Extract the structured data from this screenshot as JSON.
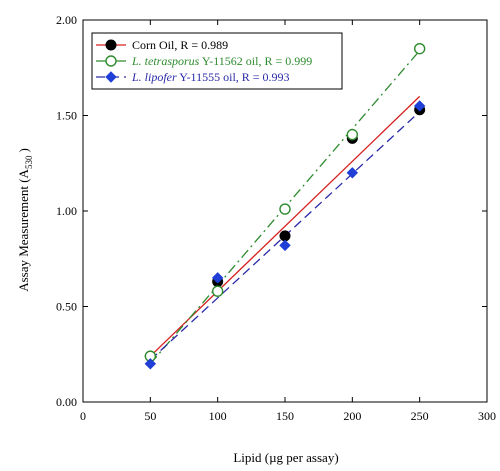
{
  "chart_data": {
    "type": "scatter",
    "title": "",
    "xlabel": "Lipid  (µg per assay)",
    "ylabel_main": "Assay Measurement (A",
    "ylabel_sub": "530",
    "ylabel_close": ")",
    "xlim": [
      0,
      300
    ],
    "ylim": [
      0,
      2.0
    ],
    "x_ticks": [
      0,
      50,
      100,
      150,
      200,
      250,
      300
    ],
    "x_tick_labels": [
      "0",
      "50",
      "100",
      "150",
      "200",
      "250",
      "300"
    ],
    "y_ticks": [
      0,
      0.5,
      1.0,
      1.5,
      2.0
    ],
    "y_tick_labels": [
      "0.00",
      "0.50",
      "1.00",
      "1.50",
      "2.00"
    ],
    "grid": false,
    "legend_position": "top-left",
    "series": [
      {
        "key": "corn",
        "name_italic": "",
        "name_rest": "Corn Oil, R = 0.989",
        "color": "#d62020",
        "marker": "filled-circle",
        "marker_color": "#000000",
        "line_style": "solid",
        "x": [
          50,
          100,
          150,
          200,
          250
        ],
        "y": [
          0.24,
          0.63,
          0.87,
          1.38,
          1.53
        ],
        "fit": {
          "x": [
            50,
            250
          ],
          "y": [
            0.24,
            1.6
          ]
        }
      },
      {
        "key": "tetrasporus",
        "name_italic": "L. tetrasporus",
        "name_rest": " Y-11562 oil, R = 0.999",
        "color": "#2e8b2e",
        "marker": "open-circle",
        "marker_color": "#2e8b2e",
        "line_style": "dash-dot",
        "x": [
          50,
          100,
          150,
          200,
          250
        ],
        "y": [
          0.24,
          0.58,
          1.01,
          1.4,
          1.85
        ],
        "fit": {
          "x": [
            50,
            250
          ],
          "y": [
            0.2,
            1.84
          ]
        }
      },
      {
        "key": "lipofer",
        "name_italic": "L. lipofer",
        "name_rest": " Y-11555 oil, R = 0.993",
        "color": "#2a2aa8",
        "marker": "filled-diamond",
        "marker_color": "#1f3fd6",
        "line_style": "dashed",
        "x": [
          50,
          100,
          150,
          200,
          250
        ],
        "y": [
          0.2,
          0.65,
          0.82,
          1.2,
          1.55
        ],
        "fit": {
          "x": [
            50,
            250
          ],
          "y": [
            0.22,
            1.52
          ]
        }
      }
    ]
  }
}
